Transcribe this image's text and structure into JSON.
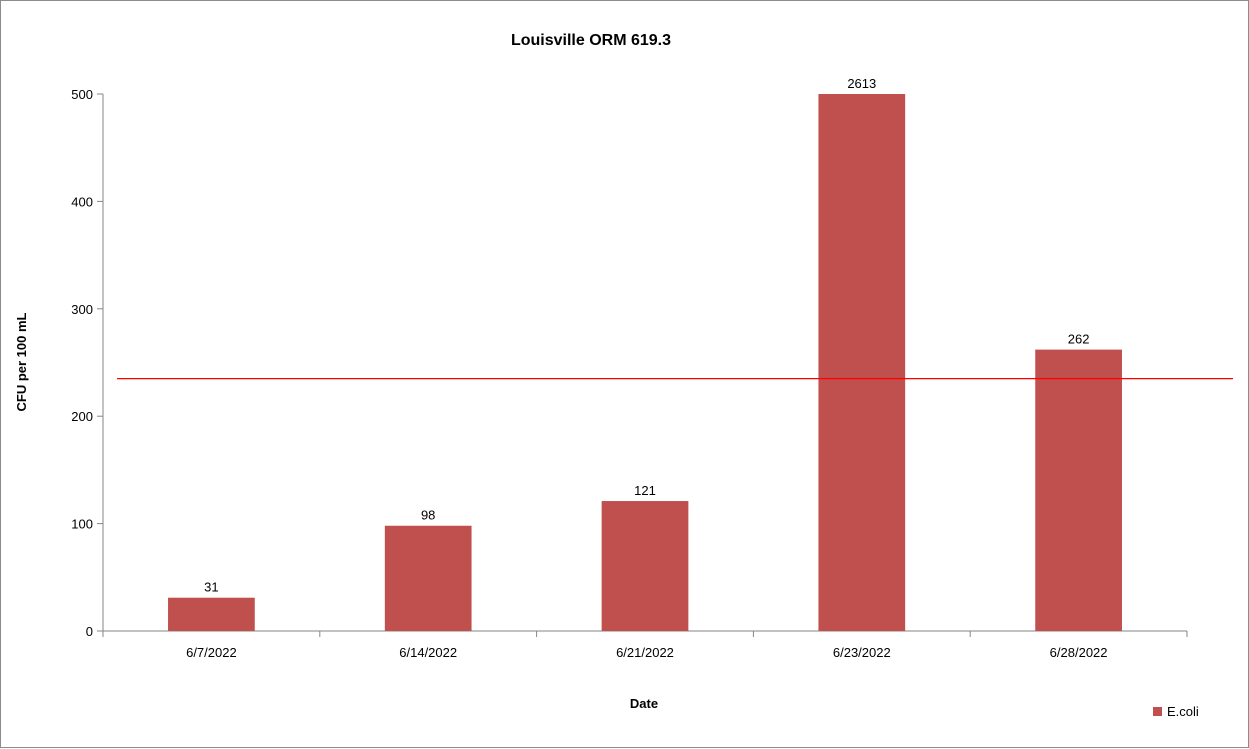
{
  "chart_data": {
    "type": "bar",
    "title": "Louisville ORM 619.3",
    "xlabel": "Date",
    "ylabel": "CFU per 100 mL",
    "categories": [
      "6/7/2022",
      "6/14/2022",
      "6/21/2022",
      "6/23/2022",
      "6/28/2022"
    ],
    "series": [
      {
        "name": "E.coli",
        "values": [
          31,
          98,
          121,
          2613,
          262
        ],
        "data_labels": [
          "31",
          "98",
          "121",
          "2613",
          "262"
        ],
        "color": "#c0504d"
      }
    ],
    "ylim": [
      0,
      500
    ],
    "yticks": [
      0,
      100,
      200,
      300,
      400,
      500
    ],
    "reference_line": {
      "value": 235,
      "color": "#ff0000"
    },
    "grid": false,
    "legend_position": "bottom-right"
  }
}
